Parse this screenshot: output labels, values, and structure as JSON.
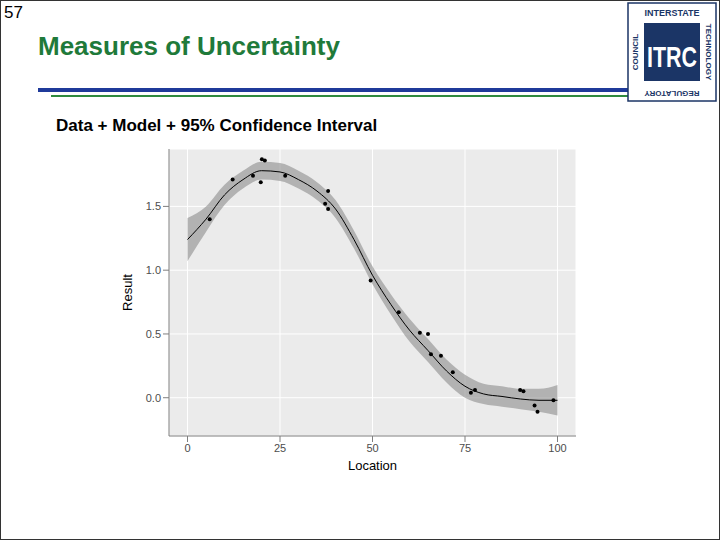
{
  "slide": {
    "page_number": "57",
    "title": "Measures of Uncertainty",
    "logo": {
      "top": "INTERSTATE",
      "right": "TECHNOLOGY",
      "bottom": "REGULATORY",
      "left": "COUNCIL",
      "center": "ITRC"
    }
  },
  "chart_data": {
    "type": "scatter",
    "title": "Data + Model + 95% Confidence Interval",
    "x_label": "Location",
    "y_label": "Result",
    "points": {
      "x": [
        6.0,
        12.2,
        17.7,
        19.8,
        20.1,
        20.9,
        26.4,
        37.2,
        38.0,
        38.0,
        49.5,
        57.1,
        62.8,
        65.0,
        65.8,
        68.5,
        71.7,
        76.6,
        77.7,
        89.9,
        90.8,
        93.8,
        94.6,
        98.9
      ],
      "y": [
        1.4,
        1.71,
        1.74,
        1.69,
        1.87,
        1.86,
        1.74,
        1.52,
        1.62,
        1.48,
        0.92,
        0.67,
        0.51,
        0.5,
        0.34,
        0.33,
        0.2,
        0.04,
        0.06,
        0.06,
        0.05,
        -0.06,
        -0.11,
        -0.02
      ]
    },
    "model": {
      "x": [
        0,
        5,
        10,
        15,
        20,
        25,
        30,
        35,
        40,
        45,
        50,
        55,
        60,
        65,
        70,
        75,
        80,
        85,
        90,
        95,
        100
      ],
      "values": [
        1.24,
        1.4,
        1.59,
        1.71,
        1.78,
        1.77,
        1.71,
        1.62,
        1.48,
        1.24,
        0.96,
        0.73,
        0.53,
        0.37,
        0.21,
        0.09,
        0.03,
        0.01,
        -0.01,
        -0.02,
        -0.02
      ],
      "lower": [
        1.07,
        1.3,
        1.51,
        1.64,
        1.71,
        1.7,
        1.64,
        1.55,
        1.41,
        1.17,
        0.89,
        0.65,
        0.44,
        0.28,
        0.12,
        0.0,
        -0.05,
        -0.07,
        -0.09,
        -0.11,
        -0.14
      ],
      "upper": [
        1.41,
        1.5,
        1.67,
        1.78,
        1.85,
        1.84,
        1.78,
        1.69,
        1.55,
        1.31,
        1.03,
        0.81,
        0.62,
        0.46,
        0.3,
        0.18,
        0.11,
        0.09,
        0.07,
        0.07,
        0.1
      ]
    },
    "color": "#000000",
    "xlim": [
      -5,
      105
    ],
    "xticks": [
      0,
      25,
      50,
      75,
      100
    ],
    "ylim": [
      -0.3,
      1.95
    ],
    "yticks": [
      {
        "value": 0,
        "label": "0.0"
      },
      {
        "value": 0.5,
        "label": "0.5"
      },
      {
        "value": 1,
        "label": "1.0"
      },
      {
        "value": 1.5,
        "label": "1.5"
      }
    ],
    "grid": true
  }
}
